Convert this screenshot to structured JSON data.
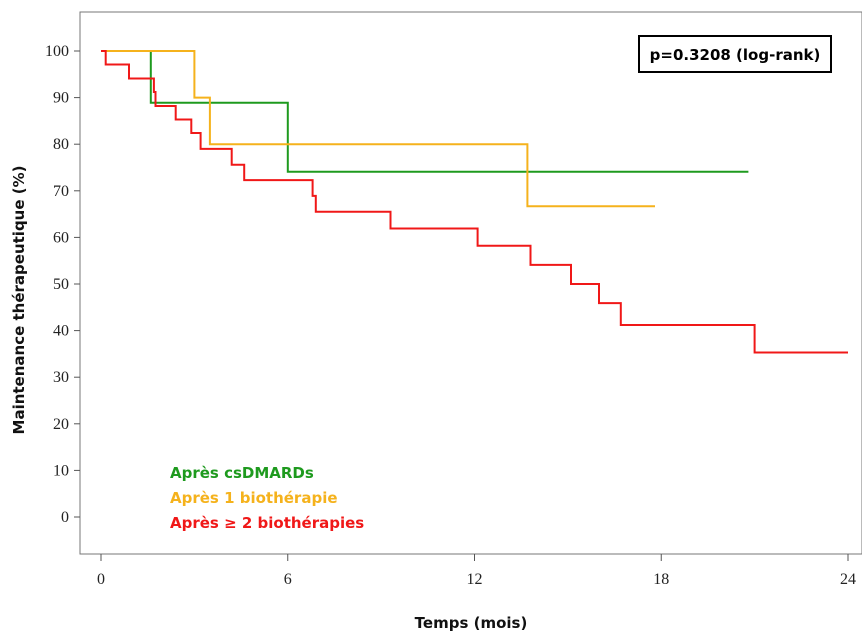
{
  "chart_data": {
    "type": "line",
    "subtype": "kaplan-meier-step",
    "xlabel": "Temps (mois)",
    "ylabel": "Maintenance thérapeutique (%)",
    "xlim": [
      0,
      24
    ],
    "ylim": [
      0,
      100
    ],
    "xticks": [
      0,
      6,
      12,
      18,
      24
    ],
    "yticks": [
      0,
      10,
      20,
      30,
      40,
      50,
      60,
      70,
      80,
      90,
      100
    ],
    "grid": false,
    "annotation": "p=0.3208 (log-rank)",
    "annotation_placement": "top-right",
    "legend_placement": "bottom-left",
    "series": [
      {
        "name": "Après csDMARDs",
        "color": "#1e9a1e",
        "points": [
          [
            0,
            100
          ],
          [
            1.6,
            100
          ],
          [
            1.6,
            88.9
          ],
          [
            6.0,
            88.9
          ],
          [
            6.0,
            74.1
          ],
          [
            20.8,
            74.1
          ]
        ]
      },
      {
        "name": "Après 1 biothérapie",
        "color": "#f5b21c",
        "points": [
          [
            0,
            100
          ],
          [
            3.0,
            100
          ],
          [
            3.0,
            90.0
          ],
          [
            3.5,
            90.0
          ],
          [
            3.5,
            80.0
          ],
          [
            13.7,
            80.0
          ],
          [
            13.7,
            66.7
          ],
          [
            17.8,
            66.7
          ]
        ]
      },
      {
        "name": "Après ≥ 2 biothérapies",
        "color": "#f01818",
        "points": [
          [
            0,
            100
          ],
          [
            0.15,
            100
          ],
          [
            0.15,
            97.1
          ],
          [
            0.9,
            97.1
          ],
          [
            0.9,
            94.1
          ],
          [
            1.7,
            94.1
          ],
          [
            1.7,
            91.2
          ],
          [
            1.75,
            91.2
          ],
          [
            1.75,
            88.2
          ],
          [
            2.4,
            88.2
          ],
          [
            2.4,
            85.3
          ],
          [
            2.9,
            85.3
          ],
          [
            2.9,
            82.4
          ],
          [
            3.2,
            82.4
          ],
          [
            3.2,
            79.0
          ],
          [
            4.2,
            79.0
          ],
          [
            4.2,
            75.6
          ],
          [
            4.6,
            75.6
          ],
          [
            4.6,
            72.3
          ],
          [
            6.8,
            72.3
          ],
          [
            6.8,
            68.9
          ],
          [
            6.9,
            68.9
          ],
          [
            6.9,
            65.5
          ],
          [
            9.3,
            65.5
          ],
          [
            9.3,
            61.9
          ],
          [
            12.1,
            61.9
          ],
          [
            12.1,
            58.2
          ],
          [
            13.8,
            58.2
          ],
          [
            13.8,
            54.1
          ],
          [
            15.1,
            54.1
          ],
          [
            15.1,
            50.0
          ],
          [
            16.0,
            50.0
          ],
          [
            16.0,
            45.9
          ],
          [
            16.7,
            45.9
          ],
          [
            16.7,
            41.2
          ],
          [
            21.0,
            41.2
          ],
          [
            21.0,
            35.3
          ],
          [
            24.0,
            35.3
          ]
        ]
      }
    ]
  }
}
